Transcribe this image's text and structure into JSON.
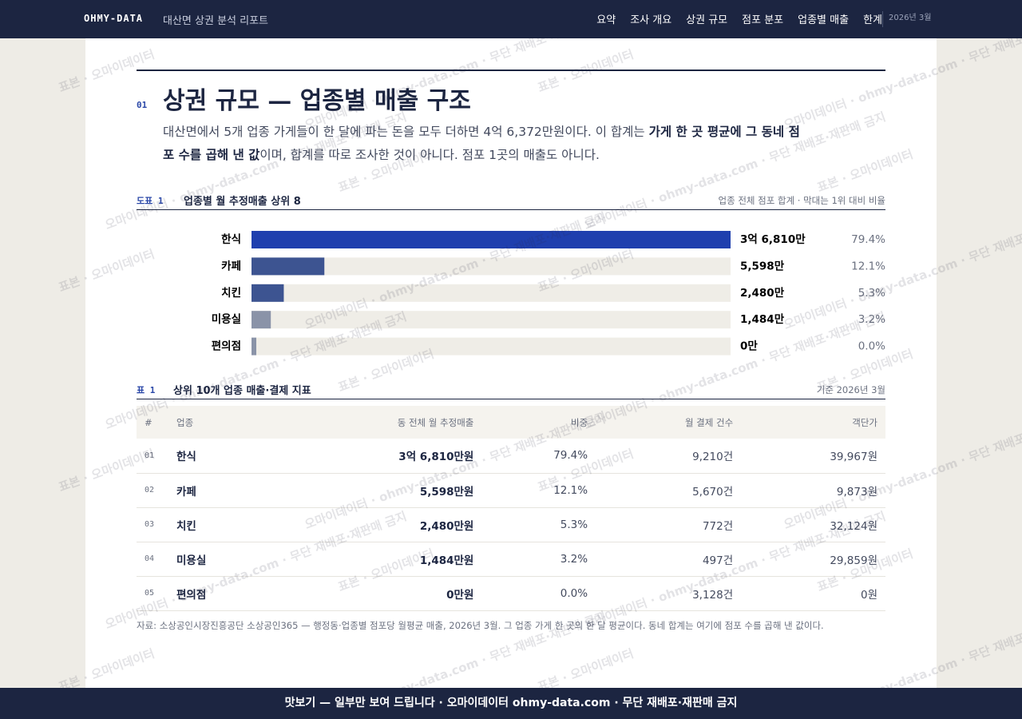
{
  "header": {
    "brand": "OHMY-DATA",
    "subtitle": "대산면 상권 분석 리포트",
    "nav": [
      "요약",
      "조사 개요",
      "상권 규모",
      "점포 분포",
      "업종별 매출",
      "한계"
    ],
    "date": "2026년 3월"
  },
  "section": {
    "number": "01",
    "title": "상권 규모 — 업종별 매출 구조",
    "lead": [
      "대산면에서 5개 업종 가게들이 한 달에 파는 돈을 모두 더하면 4억 6,372만원이다. 이 합계는 ",
      "가게 한 곳 평균에 그 동네 점포 수를 곱해 낸 값",
      "이며, 합계를 따로 조사한 것이 아니다. 점포 1곳의 매출도 아니다."
    ]
  },
  "figure": {
    "label": "도표 1",
    "title": "업종별 월 추정매출 상위 8",
    "note": "업종 전체 점포 합계 · 막대는 1위 대비 비율",
    "categories": [
      "한식",
      "카페",
      "치킨",
      "미용실",
      "편의점"
    ],
    "values": [
      36810,
      5598,
      2480,
      1484,
      0
    ],
    "value_labels": [
      "3억 6,810만",
      "5,598만",
      "2,480만",
      "1,484만",
      "0만"
    ],
    "shares": [
      {
        "value": 79.4,
        "label": "79.4%"
      },
      {
        "value": 12.1,
        "label": "12.1%"
      },
      {
        "value": 5.3,
        "label": "5.3%"
      },
      {
        "value": 3.2,
        "label": "3.2%"
      },
      {
        "value": 0.0,
        "label": "0.0%"
      }
    ],
    "colors": [
      "#1f3fae",
      "#3d5491",
      "#3d5491",
      "#8a93a8",
      "#8a93a8"
    ]
  },
  "table": {
    "label": "표 1",
    "title": "상위 10개 업종 매출·결제 지표",
    "note": "기준 2026년 3월",
    "columns": [
      "#",
      "업종",
      "동 전체 월 추정매출",
      "비중",
      "월 결제 건수",
      "객단가"
    ],
    "rows": [
      [
        "01",
        "한식",
        "3억 6,810만원",
        "79.4%",
        "9,210건",
        "39,967원"
      ],
      [
        "02",
        "카페",
        "5,598만원",
        "12.1%",
        "5,670건",
        "9,873원"
      ],
      [
        "03",
        "치킨",
        "2,480만원",
        "5.3%",
        "772건",
        "32,124원"
      ],
      [
        "04",
        "미용실",
        "1,484만원",
        "3.2%",
        "497건",
        "29,859원"
      ],
      [
        "05",
        "편의점",
        "0만원",
        "0.0%",
        "3,128건",
        "0원"
      ]
    ]
  },
  "source": "자료: 소상공인시장진흥공단 소상공인365 — 행정동·업종별 점포당 월평균 매출, 2026년 3월. 그 업종 가게 한 곳의 한 달 평균이다. 동네 합계는 여기에 점포 수를 곱해 낸 값이다.",
  "watermarks": [
    "표본 · 오마이데이터",
    "오마이데이터 · ohmy-data.com · 무단 재배포·재판매 금지"
  ],
  "footer": "맛보기 — 일부만 보여 드립니다 · 오마이데이터 ohmy-data.com · 무단 재배포·재판매 금지"
}
